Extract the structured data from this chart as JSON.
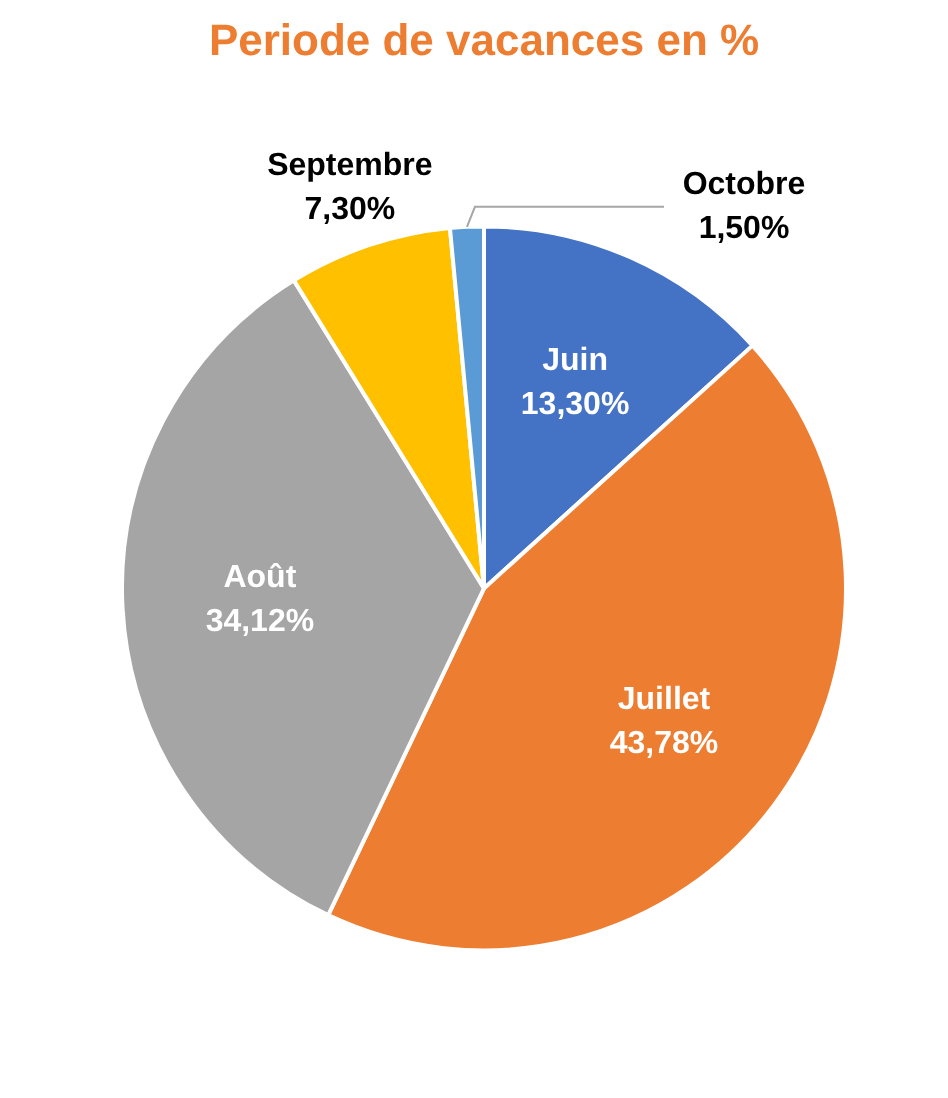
{
  "chart_data": {
    "type": "pie",
    "title": "Periode de vacances en %",
    "categories": [
      "Juin",
      "Juillet",
      "Août",
      "Septembre",
      "Octobre"
    ],
    "values": [
      13.3,
      43.78,
      34.12,
      7.3,
      1.5
    ],
    "value_labels": [
      "13,30%",
      "43,78%",
      "34,12%",
      "7,30%",
      "1,50%"
    ],
    "colors": [
      "#4472c4",
      "#ed7d31",
      "#a5a5a5",
      "#ffc000",
      "#5b9bd5"
    ],
    "legend": false
  }
}
